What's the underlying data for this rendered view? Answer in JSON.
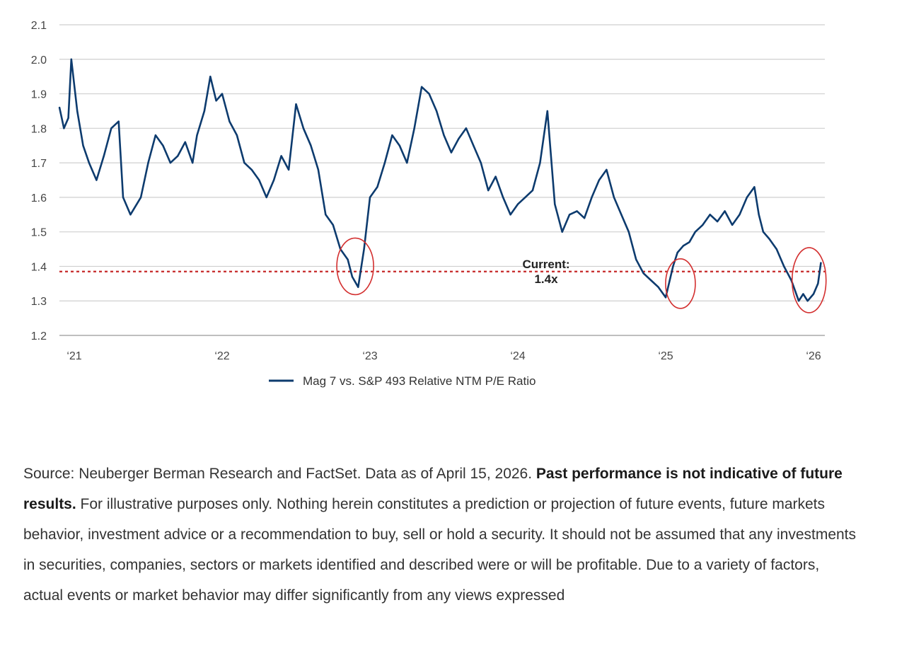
{
  "chart_data": {
    "type": "line",
    "title": "",
    "xlabel": "",
    "ylabel": "",
    "ylim": [
      1.2,
      2.1
    ],
    "yticks": [
      1.2,
      1.3,
      1.4,
      1.5,
      1.6,
      1.7,
      1.8,
      1.9,
      2.0,
      2.1
    ],
    "ytick_labels": [
      "1.2",
      "1.3",
      "1.4",
      "1.5",
      "1.6",
      "1.7",
      "1.8",
      "1.9",
      "2.0",
      "2.1"
    ],
    "xlim": [
      2021.0,
      2026.05
    ],
    "xticks": [
      2021,
      2022,
      2023,
      2024,
      2025,
      2026
    ],
    "xtick_labels": [
      "‘21",
      "‘22",
      "‘23",
      "‘24",
      "‘25",
      "‘26"
    ],
    "grid": "horizontal",
    "legend_placement": "bottom-center",
    "series": [
      {
        "name": "Mag 7 vs. S&P 493 Relative NTM P/E Ratio",
        "color": "#0d3b6e",
        "x": [
          2020.9,
          2020.93,
          2020.96,
          2020.98,
          2021.02,
          2021.06,
          2021.1,
          2021.15,
          2021.2,
          2021.25,
          2021.3,
          2021.33,
          2021.38,
          2021.45,
          2021.5,
          2021.55,
          2021.6,
          2021.65,
          2021.7,
          2021.75,
          2021.8,
          2021.83,
          2021.88,
          2021.92,
          2021.96,
          2022.0,
          2022.05,
          2022.1,
          2022.15,
          2022.2,
          2022.25,
          2022.3,
          2022.35,
          2022.4,
          2022.45,
          2022.5,
          2022.55,
          2022.6,
          2022.65,
          2022.7,
          2022.75,
          2022.8,
          2022.85,
          2022.88,
          2022.92,
          2022.96,
          2023.0,
          2023.05,
          2023.1,
          2023.15,
          2023.2,
          2023.25,
          2023.3,
          2023.35,
          2023.4,
          2023.45,
          2023.5,
          2023.55,
          2023.6,
          2023.65,
          2023.7,
          2023.75,
          2023.8,
          2023.85,
          2023.9,
          2023.95,
          2024.0,
          2024.05,
          2024.1,
          2024.15,
          2024.2,
          2024.25,
          2024.3,
          2024.35,
          2024.4,
          2024.45,
          2024.5,
          2024.55,
          2024.6,
          2024.65,
          2024.7,
          2024.75,
          2024.8,
          2024.85,
          2024.9,
          2024.95,
          2025.0,
          2025.05,
          2025.08,
          2025.12,
          2025.16,
          2025.2,
          2025.25,
          2025.3,
          2025.35,
          2025.4,
          2025.45,
          2025.5,
          2025.55,
          2025.6,
          2025.63,
          2025.66,
          2025.7,
          2025.75,
          2025.8,
          2025.85,
          2025.9,
          2025.93,
          2025.96,
          2026.0,
          2026.03,
          2026.05
        ],
        "values": [
          1.86,
          1.8,
          1.83,
          2.0,
          1.85,
          1.75,
          1.7,
          1.65,
          1.72,
          1.8,
          1.82,
          1.6,
          1.55,
          1.6,
          1.7,
          1.78,
          1.75,
          1.7,
          1.72,
          1.76,
          1.7,
          1.78,
          1.85,
          1.95,
          1.88,
          1.9,
          1.82,
          1.78,
          1.7,
          1.68,
          1.65,
          1.6,
          1.65,
          1.72,
          1.68,
          1.87,
          1.8,
          1.75,
          1.68,
          1.55,
          1.52,
          1.45,
          1.42,
          1.37,
          1.34,
          1.45,
          1.6,
          1.63,
          1.7,
          1.78,
          1.75,
          1.7,
          1.8,
          1.92,
          1.9,
          1.85,
          1.78,
          1.73,
          1.77,
          1.8,
          1.75,
          1.7,
          1.62,
          1.66,
          1.6,
          1.55,
          1.58,
          1.6,
          1.62,
          1.7,
          1.85,
          1.58,
          1.5,
          1.55,
          1.56,
          1.54,
          1.6,
          1.65,
          1.68,
          1.6,
          1.55,
          1.5,
          1.42,
          1.38,
          1.36,
          1.34,
          1.31,
          1.4,
          1.44,
          1.46,
          1.47,
          1.5,
          1.52,
          1.55,
          1.53,
          1.56,
          1.52,
          1.55,
          1.6,
          1.63,
          1.55,
          1.5,
          1.48,
          1.45,
          1.4,
          1.36,
          1.3,
          1.32,
          1.3,
          1.32,
          1.35,
          1.41
        ]
      }
    ],
    "reference_lines": [
      {
        "y": 1.385,
        "style": "dotted",
        "color": "#c62828"
      }
    ],
    "annotations": [
      {
        "text_lines": [
          "Current:",
          "1.4x"
        ],
        "x": 2024.22,
        "y": 1.4
      }
    ],
    "highlight_circles": [
      {
        "x": 2022.9,
        "y": 1.4,
        "color": "#d32f2f"
      },
      {
        "x": 2025.1,
        "y": 1.35,
        "color": "#d32f2f"
      },
      {
        "x": 2025.97,
        "y": 1.36,
        "color": "#d32f2f"
      }
    ]
  },
  "legend": {
    "label": "Mag 7 vs. S&P 493 Relative NTM P/E Ratio"
  },
  "annotation": {
    "line1": "Current:",
    "line2": "1.4x"
  },
  "source_note": {
    "part1": "Source: Neuberger Berman Research and FactSet. Data as of April 15, 2026. ",
    "bold": "Past performance is not indicative of future results.",
    "part2": " For illustrative purposes only. Nothing herein constitutes a prediction or projection of future events, future markets behavior, investment advice or a recommendation to buy, sell or hold a security. It should not be assumed that any investments in securities, companies, sectors or markets identified and described were or will be profitable. Due to a variety of factors, actual events or market behavior may differ significantly from any views expressed"
  }
}
